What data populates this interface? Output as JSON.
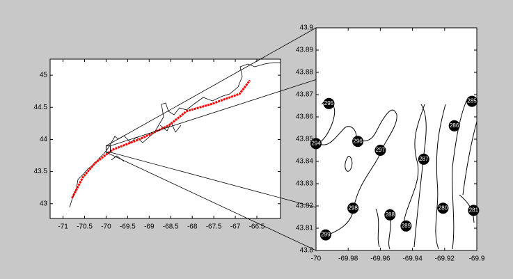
{
  "chart_data": [
    {
      "type": "line",
      "xlim": [
        -71.3,
        -65.95
      ],
      "ylim": [
        42.77,
        45.25
      ],
      "xticks": [
        -71,
        -70.5,
        -70,
        -69.5,
        -69,
        -68.5,
        -68,
        -67.5,
        -67,
        -66.5
      ],
      "yticks": [
        43,
        43.5,
        44,
        44.5,
        45
      ],
      "series": [
        {
          "color": "#ff0000",
          "x": [
            -70.79,
            -70.54,
            -70.26,
            -69.85,
            -69.2,
            -68.54,
            -68.13,
            -67.56,
            -66.9,
            -66.66
          ],
          "values": [
            43.09,
            43.41,
            43.63,
            43.84,
            44.01,
            44.22,
            44.44,
            44.55,
            44.71,
            44.92
          ]
        }
      ]
    },
    {
      "type": "scatter",
      "xlim": [
        -70,
        -69.9
      ],
      "ylim": [
        43.8,
        43.9
      ],
      "xticks": [
        -70,
        -69.98,
        -69.96,
        -69.94,
        -69.92,
        -69.9
      ],
      "yticks": [
        43.8,
        43.81,
        43.82,
        43.83,
        43.84,
        43.85,
        43.86,
        43.87,
        43.88,
        43.89,
        43.9
      ],
      "color": "#000000",
      "labels": [
        "295",
        "294",
        "296",
        "297",
        "287",
        "298",
        "288",
        "289",
        "299",
        "280",
        "281",
        "285",
        "286"
      ],
      "x": [
        -69.992,
        -70.0,
        -69.974,
        -69.96,
        -69.933,
        -69.977,
        -69.954,
        -69.944,
        -69.994,
        -69.921,
        -69.902,
        -69.903,
        -69.914
      ],
      "values": [
        43.866,
        43.848,
        43.849,
        43.845,
        43.841,
        43.819,
        43.816,
        43.811,
        43.807,
        43.819,
        43.818,
        43.867,
        43.856
      ]
    }
  ]
}
